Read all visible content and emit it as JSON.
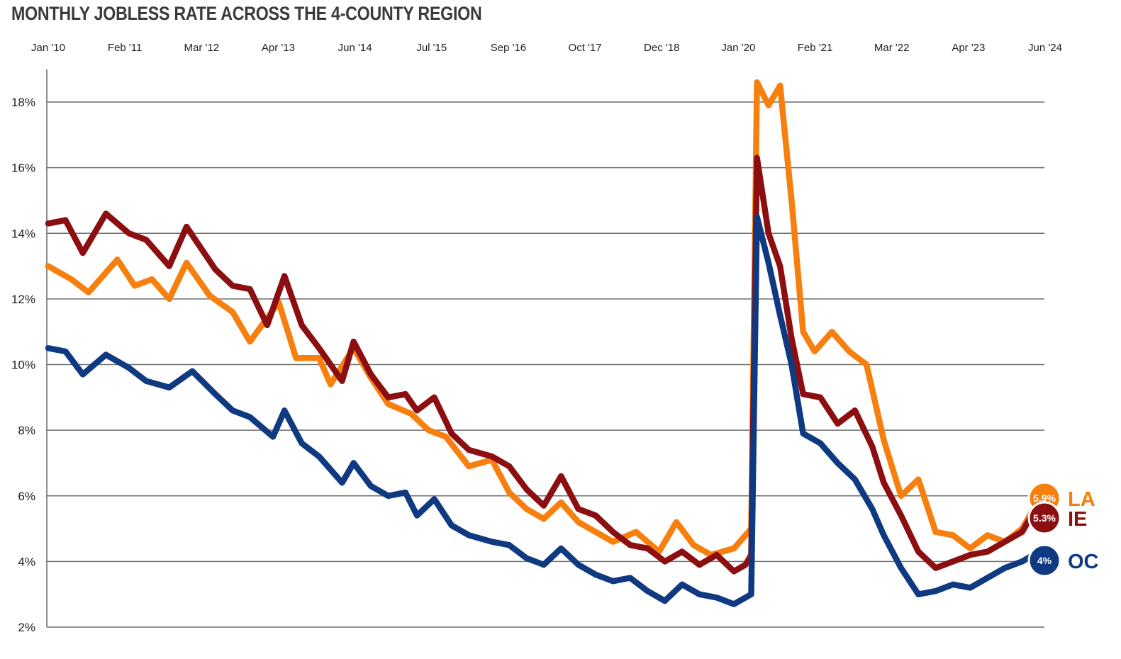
{
  "chart_data": {
    "type": "line",
    "title": "MONTHLY JOBLESS RATE ACROSS THE 4-COUNTY REGION",
    "x_tick_labels": [
      "Jan '10",
      "Feb '11",
      "Mar '12",
      "Apr '13",
      "Jun '14",
      "Jul '15",
      "Sep '16",
      "Oct '17",
      "Dec '18",
      "Jan '20",
      "Feb '21",
      "Mar '22",
      "Apr '23",
      "Jun '24"
    ],
    "y_tick_labels": [
      "2%",
      "4%",
      "6%",
      "8%",
      "10%",
      "12%",
      "14%",
      "16%",
      "18%"
    ],
    "y_ticks": [
      2,
      4,
      6,
      8,
      10,
      12,
      14,
      16,
      18
    ],
    "ylim": [
      2,
      19
    ],
    "x_start": "2010-01",
    "x_end": "2024-06",
    "grid": true,
    "series": [
      {
        "name": "LA",
        "label": "LA",
        "end_value_label": "5.9%",
        "color": "#F77F0E",
        "points": [
          [
            "2010-01",
            13.0
          ],
          [
            "2010-05",
            12.6
          ],
          [
            "2010-08",
            12.2
          ],
          [
            "2011-01",
            13.2
          ],
          [
            "2011-04",
            12.4
          ],
          [
            "2011-07",
            12.6
          ],
          [
            "2011-10",
            12.0
          ],
          [
            "2012-01",
            13.1
          ],
          [
            "2012-05",
            12.1
          ],
          [
            "2012-09",
            11.6
          ],
          [
            "2012-12",
            10.7
          ],
          [
            "2013-05",
            11.9
          ],
          [
            "2013-08",
            10.2
          ],
          [
            "2013-12",
            10.2
          ],
          [
            "2014-02",
            9.4
          ],
          [
            "2014-06",
            10.5
          ],
          [
            "2014-09",
            9.6
          ],
          [
            "2014-12",
            8.8
          ],
          [
            "2015-04",
            8.5
          ],
          [
            "2015-07",
            8.0
          ],
          [
            "2015-10",
            7.8
          ],
          [
            "2016-02",
            6.9
          ],
          [
            "2016-06",
            7.1
          ],
          [
            "2016-09",
            6.1
          ],
          [
            "2016-12",
            5.6
          ],
          [
            "2017-03",
            5.3
          ],
          [
            "2017-06",
            5.8
          ],
          [
            "2017-09",
            5.2
          ],
          [
            "2017-12",
            4.9
          ],
          [
            "2018-03",
            4.6
          ],
          [
            "2018-07",
            4.9
          ],
          [
            "2018-11",
            4.3
          ],
          [
            "2019-02",
            5.2
          ],
          [
            "2019-05",
            4.5
          ],
          [
            "2019-08",
            4.2
          ],
          [
            "2019-12",
            4.4
          ],
          [
            "2020-02",
            4.8
          ],
          [
            "2020-03",
            5.0
          ],
          [
            "2020-04",
            18.6
          ],
          [
            "2020-06",
            17.9
          ],
          [
            "2020-08",
            18.5
          ],
          [
            "2020-10",
            15.0
          ],
          [
            "2020-12",
            11.0
          ],
          [
            "2021-02",
            10.4
          ],
          [
            "2021-05",
            11.0
          ],
          [
            "2021-08",
            10.4
          ],
          [
            "2021-11",
            10.0
          ],
          [
            "2022-02",
            7.7
          ],
          [
            "2022-05",
            6.0
          ],
          [
            "2022-08",
            6.5
          ],
          [
            "2022-11",
            4.9
          ],
          [
            "2023-02",
            4.8
          ],
          [
            "2023-05",
            4.4
          ],
          [
            "2023-08",
            4.8
          ],
          [
            "2023-11",
            4.6
          ],
          [
            "2024-02",
            5.0
          ],
          [
            "2024-04",
            5.6
          ],
          [
            "2024-06",
            5.9
          ]
        ]
      },
      {
        "name": "IE",
        "label": "IE",
        "end_value_label": "5.3%",
        "color": "#8B0E10",
        "points": [
          [
            "2010-01",
            14.3
          ],
          [
            "2010-04",
            14.4
          ],
          [
            "2010-07",
            13.4
          ],
          [
            "2010-11",
            14.6
          ],
          [
            "2011-03",
            14.0
          ],
          [
            "2011-06",
            13.8
          ],
          [
            "2011-10",
            13.0
          ],
          [
            "2012-01",
            14.2
          ],
          [
            "2012-06",
            12.9
          ],
          [
            "2012-09",
            12.4
          ],
          [
            "2012-12",
            12.3
          ],
          [
            "2013-03",
            11.2
          ],
          [
            "2013-06",
            12.7
          ],
          [
            "2013-09",
            11.2
          ],
          [
            "2013-12",
            10.5
          ],
          [
            "2014-04",
            9.5
          ],
          [
            "2014-06",
            10.7
          ],
          [
            "2014-09",
            9.7
          ],
          [
            "2014-12",
            9.0
          ],
          [
            "2015-03",
            9.1
          ],
          [
            "2015-05",
            8.6
          ],
          [
            "2015-08",
            9.0
          ],
          [
            "2015-11",
            7.9
          ],
          [
            "2016-02",
            7.4
          ],
          [
            "2016-06",
            7.2
          ],
          [
            "2016-09",
            6.9
          ],
          [
            "2016-12",
            6.2
          ],
          [
            "2017-03",
            5.7
          ],
          [
            "2017-06",
            6.6
          ],
          [
            "2017-09",
            5.6
          ],
          [
            "2017-12",
            5.4
          ],
          [
            "2018-03",
            4.9
          ],
          [
            "2018-06",
            4.5
          ],
          [
            "2018-09",
            4.4
          ],
          [
            "2018-12",
            4.0
          ],
          [
            "2019-03",
            4.3
          ],
          [
            "2019-06",
            3.9
          ],
          [
            "2019-09",
            4.2
          ],
          [
            "2019-12",
            3.7
          ],
          [
            "2020-02",
            3.9
          ],
          [
            "2020-03",
            4.2
          ],
          [
            "2020-04",
            16.3
          ],
          [
            "2020-06",
            14.0
          ],
          [
            "2020-08",
            13.0
          ],
          [
            "2020-10",
            10.8
          ],
          [
            "2020-12",
            9.1
          ],
          [
            "2021-03",
            9.0
          ],
          [
            "2021-06",
            8.2
          ],
          [
            "2021-09",
            8.6
          ],
          [
            "2021-12",
            7.5
          ],
          [
            "2022-02",
            6.4
          ],
          [
            "2022-05",
            5.4
          ],
          [
            "2022-08",
            4.3
          ],
          [
            "2022-11",
            3.8
          ],
          [
            "2023-02",
            4.0
          ],
          [
            "2023-05",
            4.2
          ],
          [
            "2023-08",
            4.3
          ],
          [
            "2023-11",
            4.6
          ],
          [
            "2024-02",
            4.9
          ],
          [
            "2024-04",
            5.5
          ],
          [
            "2024-06",
            5.3
          ]
        ]
      },
      {
        "name": "OC",
        "label": "OC",
        "end_value_label": "4%",
        "color": "#0F3A82",
        "points": [
          [
            "2010-01",
            10.5
          ],
          [
            "2010-04",
            10.4
          ],
          [
            "2010-07",
            9.7
          ],
          [
            "2010-11",
            10.3
          ],
          [
            "2011-03",
            9.9
          ],
          [
            "2011-06",
            9.5
          ],
          [
            "2011-10",
            9.3
          ],
          [
            "2012-02",
            9.8
          ],
          [
            "2012-06",
            9.1
          ],
          [
            "2012-09",
            8.6
          ],
          [
            "2012-12",
            8.4
          ],
          [
            "2013-04",
            7.8
          ],
          [
            "2013-06",
            8.6
          ],
          [
            "2013-09",
            7.6
          ],
          [
            "2013-12",
            7.2
          ],
          [
            "2014-04",
            6.4
          ],
          [
            "2014-06",
            7.0
          ],
          [
            "2014-09",
            6.3
          ],
          [
            "2014-12",
            6.0
          ],
          [
            "2015-03",
            6.1
          ],
          [
            "2015-05",
            5.4
          ],
          [
            "2015-08",
            5.9
          ],
          [
            "2015-11",
            5.1
          ],
          [
            "2016-02",
            4.8
          ],
          [
            "2016-06",
            4.6
          ],
          [
            "2016-09",
            4.5
          ],
          [
            "2016-12",
            4.1
          ],
          [
            "2017-03",
            3.9
          ],
          [
            "2017-06",
            4.4
          ],
          [
            "2017-09",
            3.9
          ],
          [
            "2017-12",
            3.6
          ],
          [
            "2018-03",
            3.4
          ],
          [
            "2018-06",
            3.5
          ],
          [
            "2018-09",
            3.1
          ],
          [
            "2018-12",
            2.8
          ],
          [
            "2019-03",
            3.3
          ],
          [
            "2019-06",
            3.0
          ],
          [
            "2019-09",
            2.9
          ],
          [
            "2019-12",
            2.7
          ],
          [
            "2020-02",
            2.9
          ],
          [
            "2020-03",
            3.0
          ],
          [
            "2020-04",
            14.5
          ],
          [
            "2020-06",
            13.1
          ],
          [
            "2020-08",
            11.5
          ],
          [
            "2020-10",
            10.0
          ],
          [
            "2020-12",
            7.9
          ],
          [
            "2021-03",
            7.6
          ],
          [
            "2021-06",
            7.0
          ],
          [
            "2021-09",
            6.5
          ],
          [
            "2021-12",
            5.6
          ],
          [
            "2022-02",
            4.8
          ],
          [
            "2022-05",
            3.8
          ],
          [
            "2022-08",
            3.0
          ],
          [
            "2022-11",
            3.1
          ],
          [
            "2023-02",
            3.3
          ],
          [
            "2023-05",
            3.2
          ],
          [
            "2023-08",
            3.5
          ],
          [
            "2023-11",
            3.8
          ],
          [
            "2024-02",
            4.0
          ],
          [
            "2024-04",
            4.2
          ],
          [
            "2024-06",
            4.0
          ]
        ]
      }
    ]
  },
  "colors": {
    "grid": "#6e6e6e",
    "title": "#3a3a3a",
    "text": "#222222"
  }
}
